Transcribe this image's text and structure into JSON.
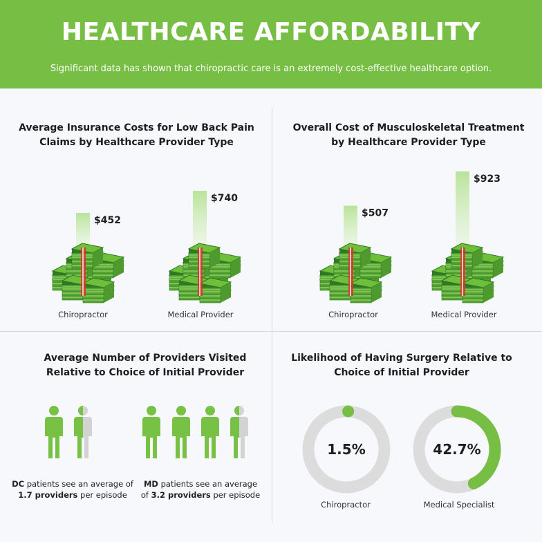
{
  "header": {
    "title": "HEALTHCARE AFFORDABILITY",
    "subtitle": "Significant data has shown that chiropractic care is an extremely cost-effective healthcare option."
  },
  "colors": {
    "header_bg": "#77be45",
    "bill_green": "#6fbf3b",
    "bill_dark": "#2e7a24",
    "band_red": "#d9342b",
    "person_green": "#77c245",
    "person_gray": "#d3d3d3",
    "donut_track": "#dcdcdc",
    "donut_fill": "#77be45"
  },
  "icons": [
    "money-stack-icon",
    "person-icon"
  ],
  "chart_data": [
    {
      "type": "bar",
      "title_line1": "Average Insurance Costs for Low Back Pain",
      "title_line2": "Claims by Healthcare Provider Type",
      "categories": [
        "Chiropractor",
        "Medical Provider"
      ],
      "values": [
        452,
        740
      ],
      "value_labels": [
        "$452",
        "$740"
      ]
    },
    {
      "type": "bar",
      "title_line1": "Overall Cost of Musculoskeletal Treatment",
      "title_line2": "by Healthcare Provider Type",
      "categories": [
        "Chiropractor",
        "Medical Provider"
      ],
      "values": [
        507,
        923
      ],
      "value_labels": [
        "$507",
        "$923"
      ]
    },
    {
      "type": "bar",
      "title_line1": "Average Number of Providers Visited",
      "title_line2": "Relative to Choice of Initial Provider",
      "categories": [
        "DC",
        "MD"
      ],
      "values": [
        1.7,
        3.2
      ],
      "captions": [
        {
          "bold1": "DC",
          "text1": " patients see an average of",
          "bold2": "1.7 providers",
          "text2": " per episode"
        },
        {
          "bold1": "MD",
          "text1": " patients see an average",
          "pre2": "of ",
          "bold2": "3.2 providers",
          "text2": " per episode"
        }
      ]
    },
    {
      "type": "pie",
      "title_line1": "Likelihood of Having Surgery Relative to",
      "title_line2": "Choice of Initial Provider",
      "categories": [
        "Chiropractor",
        "Medical Specialist"
      ],
      "values": [
        1.5,
        42.7
      ],
      "value_labels": [
        "1.5%",
        "42.7%"
      ]
    }
  ]
}
